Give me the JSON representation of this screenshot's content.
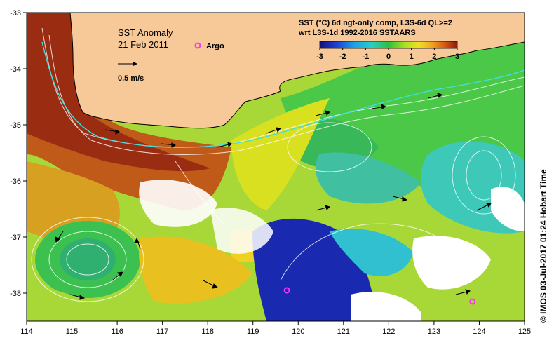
{
  "map": {
    "title_line1": "SST Anomaly",
    "title_line2": "21 Feb 2011",
    "velocity_scale_label": "0.5 m/s",
    "legend_argo_label": "Argo",
    "product_line1": "SST (°C) 6d ngt-only comp, L3S-6d QL>=2",
    "product_line2": "wrt L3S-1d 1992-2016 SSTAARS",
    "colorbar": {
      "ticks": [
        "-3",
        "-2",
        "-1",
        "0",
        "1",
        "2",
        "3"
      ],
      "colors": [
        "#10107a",
        "#1f3fd8",
        "#1aa0e8",
        "#25d0c8",
        "#2ec040",
        "#a8e020",
        "#f0e020",
        "#f0a020",
        "#d05010",
        "#8a1a10"
      ]
    },
    "x_ticks": [
      "114",
      "115",
      "116",
      "117",
      "118",
      "119",
      "120",
      "121",
      "122",
      "123",
      "124",
      "125"
    ],
    "y_ticks": [
      "-33",
      "-34",
      "-35",
      "-36",
      "-37",
      "-38"
    ],
    "x_range": [
      114,
      125
    ],
    "y_range": [
      -38.5,
      -33
    ],
    "argo_floats": [
      {
        "lon": 119.75,
        "lat": -37.95
      },
      {
        "lon": 123.85,
        "lat": -38.15
      }
    ],
    "colors": {
      "land": "#f7c898",
      "coast": "#000000",
      "warm": "#b54418",
      "hot": "#8a2410",
      "mid": "#a8d838",
      "cool": "#30c060",
      "cold": "#28b8b0",
      "deep": "#141478",
      "cloud": "#ffffff",
      "argo": "#ff30ff"
    },
    "credit": "© IMOS 03-Jul-2017 01:24 Hobart Time"
  }
}
